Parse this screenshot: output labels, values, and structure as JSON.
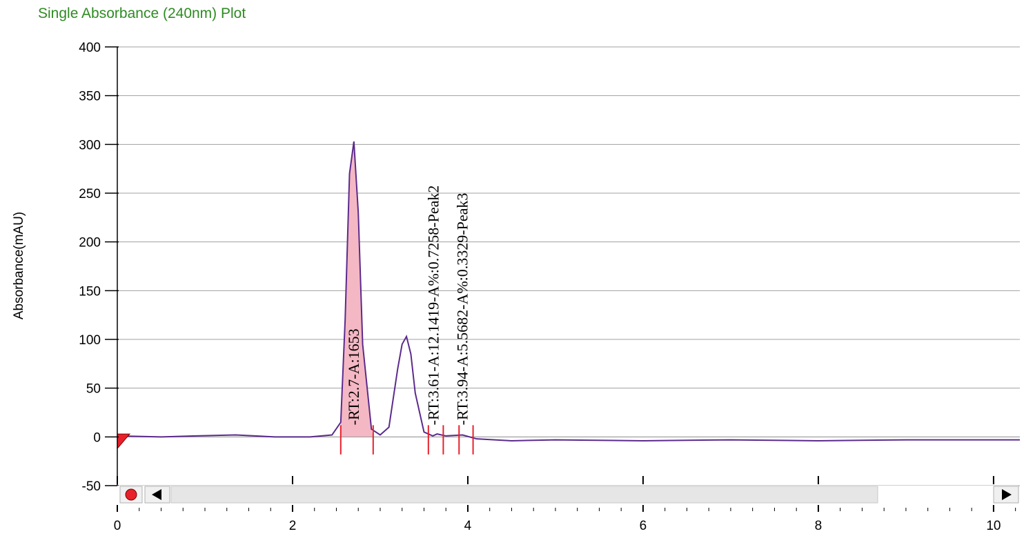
{
  "chart_data": {
    "type": "line",
    "title": "Single Absorbance (240nm) Plot",
    "ylabel": "Absorbance(mAU)",
    "xlabel": "",
    "xlim": [
      0,
      10.3
    ],
    "ylim": [
      -50,
      400
    ],
    "xticks": [
      0,
      2,
      4,
      6,
      8,
      10
    ],
    "yticks": [
      -50,
      0,
      50,
      100,
      150,
      200,
      250,
      300,
      350,
      400
    ],
    "grid": true,
    "colors": {
      "line": "#5b2a8c",
      "fill": "#f4b8c4",
      "marker": "#e8202a",
      "title": "#2e8b22"
    },
    "series": [
      {
        "x": [
          0,
          0.5,
          0.9,
          1.35,
          1.8,
          2.2,
          2.45,
          2.55,
          2.6,
          2.65,
          2.7,
          2.75,
          2.8,
          2.9,
          3.0,
          3.1,
          3.2,
          3.25,
          3.3,
          3.35,
          3.4,
          3.5,
          3.6,
          3.65,
          3.75,
          3.94,
          4.1,
          4.5,
          5.0,
          6.0,
          7.0,
          8.0,
          9.0,
          10.3
        ],
        "y": [
          1,
          0,
          1,
          2,
          0,
          0,
          2,
          15,
          120,
          270,
          303,
          230,
          95,
          8,
          2,
          10,
          70,
          95,
          103,
          85,
          45,
          5,
          1,
          3,
          1,
          2,
          -2,
          -4,
          -3,
          -4,
          -3,
          -4,
          -3,
          -3
        ]
      }
    ],
    "peaks": [
      {
        "label": "-RT:2.7-A:1653",
        "rt": 2.7,
        "start": 2.55,
        "end": 2.92
      },
      {
        "label": "-RT:3.61-A:12.1419-A%:0.7258-Peak2",
        "rt": 3.61,
        "start": 3.55,
        "end": 3.72
      },
      {
        "label": "-RT:3.94-A:5.5682-A%:0.3329-Peak3",
        "rt": 3.94,
        "start": 3.9,
        "end": 4.06
      }
    ]
  }
}
